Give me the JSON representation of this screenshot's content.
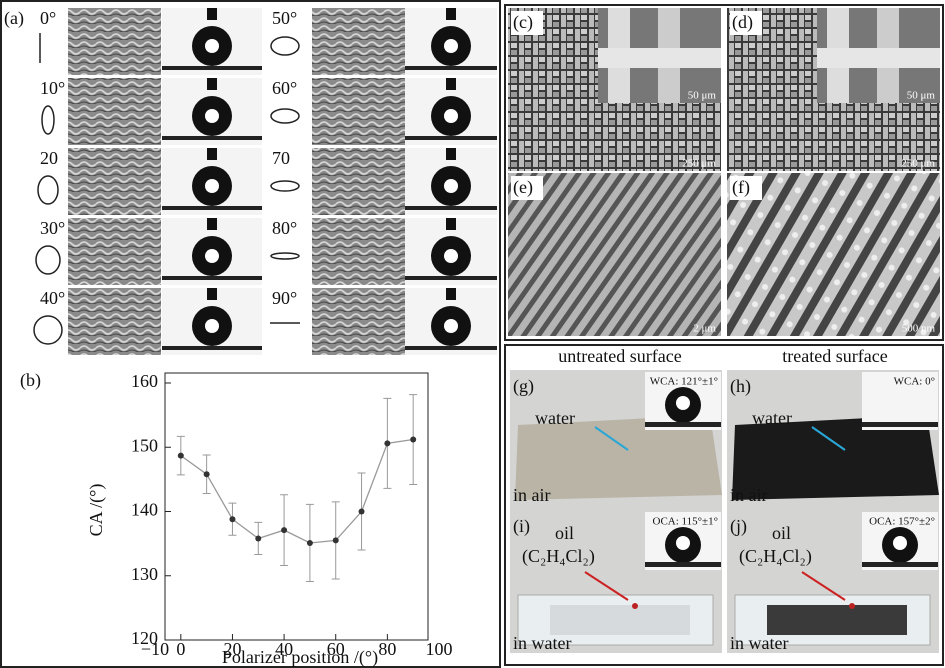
{
  "panel_a": {
    "label": "(a)",
    "angles": [
      "0°",
      "10°",
      "20",
      "30°",
      "40°",
      "50°",
      "60°",
      "70",
      "80°",
      "90°"
    ]
  },
  "chart_data": {
    "type": "line",
    "label": "(b)",
    "x_label": "Polarizer position /(°)",
    "y_label": "CA /(°)",
    "x": [
      0,
      10,
      20,
      30,
      40,
      50,
      60,
      70,
      80,
      90
    ],
    "values": [
      148.7,
      145.8,
      138.8,
      135.8,
      137.1,
      135.1,
      135.5,
      140.0,
      150.6,
      151.2
    ],
    "errors": [
      3,
      3,
      2.5,
      2.5,
      5.5,
      6,
      6,
      6,
      7,
      7
    ],
    "color": "#999999",
    "marker_color": "#333333",
    "xlim": [
      -10,
      100
    ],
    "xticks": [
      {
        "value": -10,
        "label": "−10"
      },
      0,
      20,
      40,
      60,
      80,
      100
    ],
    "ylim": [
      120,
      160
    ],
    "yticks": [
      120,
      130,
      140,
      150,
      160
    ]
  },
  "panels": {
    "c": {
      "label": "(c)",
      "scale_inset": "50 μm",
      "scale": "250 μm"
    },
    "d": {
      "label": "(d)",
      "scale_inset": "50 μm",
      "scale": "250 μm"
    },
    "e": {
      "label": "(e)",
      "scale": "2 μm"
    },
    "f": {
      "label": "(f)",
      "scale": "500 nm"
    }
  },
  "wetting": {
    "headers": [
      "untreated surface",
      "treated surface"
    ],
    "g": {
      "label": "(g)",
      "note": "WCA: 121°±1°",
      "liquid": "water",
      "medium": "in air"
    },
    "h": {
      "label": "(h)",
      "note": "WCA: 0°",
      "liquid": "water",
      "medium": "in air"
    },
    "i": {
      "label": "(i)",
      "note": "OCA: 115°±1°",
      "liquid": "oil",
      "formula": "(C₂H₄Cl₂)",
      "medium": "in water"
    },
    "j": {
      "label": "(j)",
      "note": "OCA: 157°±2°",
      "liquid": "oil",
      "formula": "(C₂H₄Cl₂)",
      "medium": "in water"
    }
  }
}
